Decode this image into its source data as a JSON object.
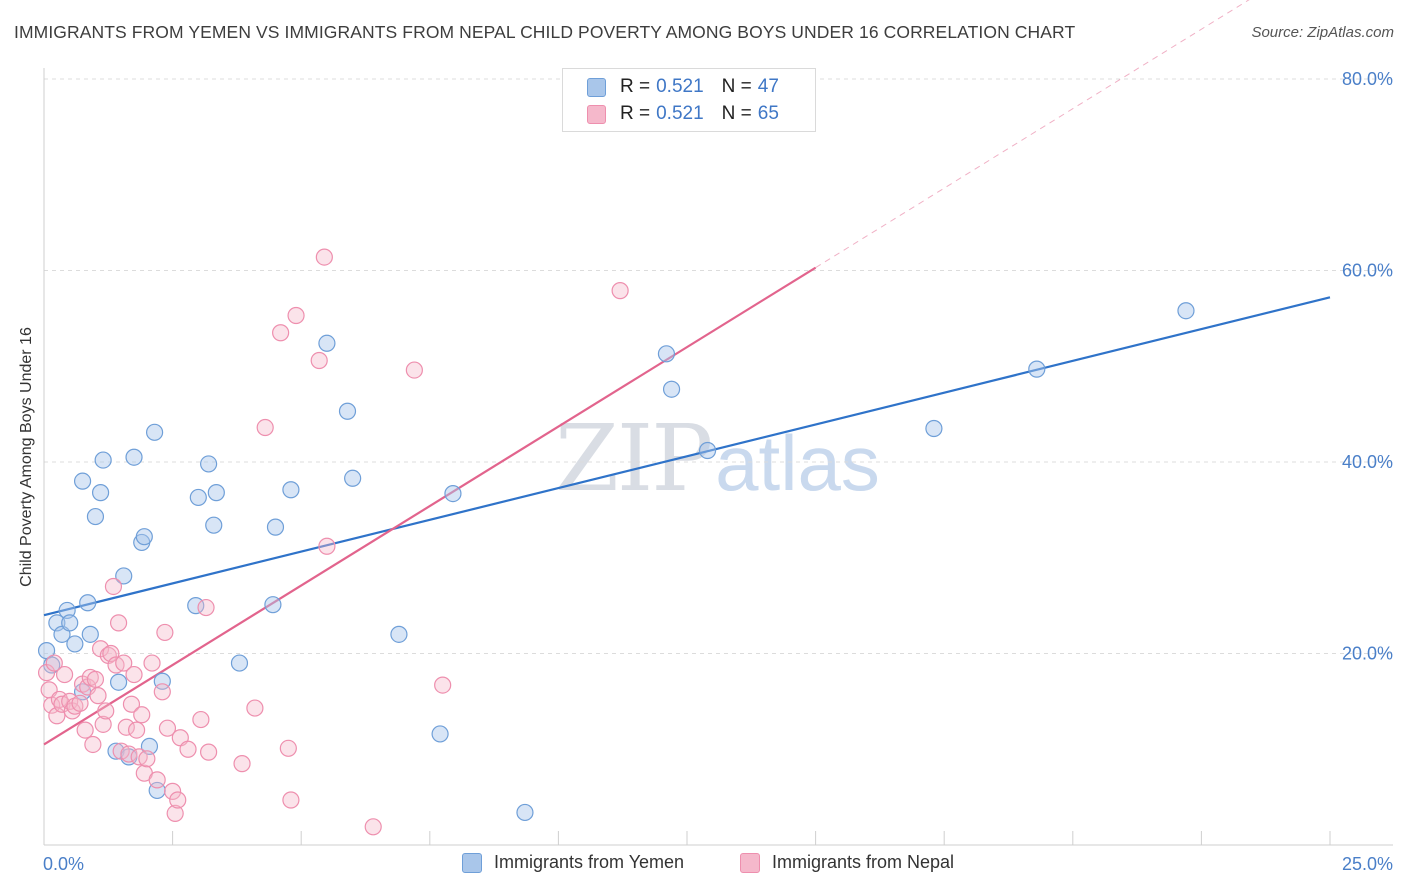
{
  "title": "IMMIGRANTS FROM YEMEN VS IMMIGRANTS FROM NEPAL CHILD POVERTY AMONG BOYS UNDER 16 CORRELATION CHART",
  "source": "Source: ZipAtlas.com",
  "watermark": {
    "zip": "ZIP",
    "atlas": "atlas"
  },
  "legend": {
    "yemen": {
      "r_label": "R = ",
      "r_value": "0.521",
      "n_label": "N = ",
      "n_value": "47"
    },
    "nepal": {
      "r_label": "R = ",
      "r_value": "0.521",
      "n_label": "N = ",
      "n_value": "65"
    }
  },
  "colors": {
    "yemen_fill": "#a9c6ea",
    "yemen_stroke": "#6f9fd8",
    "yemen_line": "#2f73c9",
    "nepal_fill": "#f5b8cb",
    "nepal_stroke": "#ee8fae",
    "nepal_line": "#e2648d",
    "grid": "#dcdcdc",
    "tick_text": "#4a7fc8"
  },
  "chart_data": {
    "type": "scatter",
    "title": "IMMIGRANTS FROM YEMEN VS IMMIGRANTS FROM NEPAL CHILD POVERTY AMONG BOYS UNDER 16 CORRELATION CHART",
    "xlabel": "",
    "ylabel": "Child Poverty Among Boys Under 16",
    "xlim": [
      0,
      25
    ],
    "ylim": [
      0,
      80
    ],
    "x_tick_labels": [
      "0.0%",
      "25.0%"
    ],
    "y_ticks": [
      20,
      40,
      60,
      80
    ],
    "y_tick_labels": [
      "20.0%",
      "40.0%",
      "60.0%",
      "80.0%"
    ],
    "grid": true,
    "series": [
      {
        "name": "Immigrants from Yemen",
        "r": 0.521,
        "n": 47,
        "trend": {
          "x0": 0,
          "y0": 24.0,
          "x1": 25,
          "y1": 57.2
        },
        "points": [
          [
            0.05,
            20.3
          ],
          [
            0.15,
            18.8
          ],
          [
            0.25,
            23.2
          ],
          [
            0.35,
            22.0
          ],
          [
            0.45,
            24.5
          ],
          [
            0.5,
            23.2
          ],
          [
            0.6,
            21.0
          ],
          [
            0.75,
            16.0
          ],
          [
            0.75,
            38.0
          ],
          [
            0.85,
            25.3
          ],
          [
            0.9,
            22.0
          ],
          [
            1.0,
            34.3
          ],
          [
            1.1,
            36.8
          ],
          [
            1.15,
            40.2
          ],
          [
            1.4,
            9.8
          ],
          [
            1.45,
            17.0
          ],
          [
            1.55,
            28.1
          ],
          [
            1.65,
            9.2
          ],
          [
            1.75,
            40.5
          ],
          [
            1.9,
            31.6
          ],
          [
            1.95,
            32.2
          ],
          [
            2.05,
            10.3
          ],
          [
            2.15,
            43.1
          ],
          [
            2.2,
            5.7
          ],
          [
            2.3,
            17.1
          ],
          [
            2.95,
            25.0
          ],
          [
            3.0,
            36.3
          ],
          [
            3.2,
            39.8
          ],
          [
            3.3,
            33.4
          ],
          [
            3.35,
            36.8
          ],
          [
            3.8,
            19.0
          ],
          [
            4.45,
            25.1
          ],
          [
            4.5,
            33.2
          ],
          [
            4.8,
            37.1
          ],
          [
            5.5,
            52.4
          ],
          [
            5.9,
            45.3
          ],
          [
            6.0,
            38.3
          ],
          [
            6.9,
            22.0
          ],
          [
            7.7,
            11.6
          ],
          [
            7.95,
            36.7
          ],
          [
            9.35,
            3.4
          ],
          [
            12.1,
            51.3
          ],
          [
            12.2,
            47.6
          ],
          [
            12.9,
            41.2
          ],
          [
            17.3,
            43.5
          ],
          [
            19.3,
            49.7
          ],
          [
            22.2,
            55.8
          ]
        ]
      },
      {
        "name": "Immigrants from Nepal",
        "r": 0.521,
        "n": 65,
        "trend": {
          "x0": 0,
          "y0": 10.5,
          "x1": 15,
          "y1": 60.3,
          "x1_dashed": 25,
          "y1_dashed": 93.5
        },
        "points": [
          [
            0.05,
            18.0
          ],
          [
            0.1,
            16.2
          ],
          [
            0.15,
            14.6
          ],
          [
            0.2,
            19.0
          ],
          [
            0.25,
            13.5
          ],
          [
            0.3,
            15.2
          ],
          [
            0.35,
            14.7
          ],
          [
            0.4,
            17.8
          ],
          [
            0.5,
            15.0
          ],
          [
            0.55,
            14.0
          ],
          [
            0.6,
            14.5
          ],
          [
            0.7,
            14.8
          ],
          [
            0.75,
            16.8
          ],
          [
            0.8,
            12.0
          ],
          [
            0.85,
            16.5
          ],
          [
            0.9,
            17.5
          ],
          [
            0.95,
            10.5
          ],
          [
            1.0,
            17.3
          ],
          [
            1.05,
            15.6
          ],
          [
            1.1,
            20.5
          ],
          [
            1.15,
            12.6
          ],
          [
            1.2,
            14.0
          ],
          [
            1.25,
            19.8
          ],
          [
            1.3,
            20.0
          ],
          [
            1.35,
            27.0
          ],
          [
            1.4,
            18.8
          ],
          [
            1.45,
            23.2
          ],
          [
            1.5,
            9.8
          ],
          [
            1.55,
            19.0
          ],
          [
            1.6,
            12.3
          ],
          [
            1.65,
            9.5
          ],
          [
            1.7,
            14.7
          ],
          [
            1.75,
            17.8
          ],
          [
            1.8,
            12.0
          ],
          [
            1.85,
            9.2
          ],
          [
            1.9,
            13.6
          ],
          [
            1.95,
            7.5
          ],
          [
            2.0,
            9.0
          ],
          [
            2.1,
            19.0
          ],
          [
            2.2,
            6.8
          ],
          [
            2.3,
            16.0
          ],
          [
            2.35,
            22.2
          ],
          [
            2.4,
            12.2
          ],
          [
            2.5,
            5.6
          ],
          [
            2.55,
            3.3
          ],
          [
            2.6,
            4.7
          ],
          [
            2.65,
            11.2
          ],
          [
            2.8,
            10.0
          ],
          [
            3.05,
            13.1
          ],
          [
            3.15,
            24.8
          ],
          [
            3.2,
            9.7
          ],
          [
            3.85,
            8.5
          ],
          [
            4.1,
            14.3
          ],
          [
            4.3,
            43.6
          ],
          [
            4.6,
            53.5
          ],
          [
            4.75,
            10.1
          ],
          [
            4.8,
            4.7
          ],
          [
            4.9,
            55.3
          ],
          [
            5.35,
            50.6
          ],
          [
            5.45,
            61.4
          ],
          [
            5.5,
            31.2
          ],
          [
            6.4,
            1.9
          ],
          [
            7.2,
            49.6
          ],
          [
            7.75,
            16.7
          ],
          [
            11.2,
            57.9
          ]
        ]
      }
    ],
    "legend_entries": [
      "Immigrants from Yemen",
      "Immigrants from Nepal"
    ]
  }
}
